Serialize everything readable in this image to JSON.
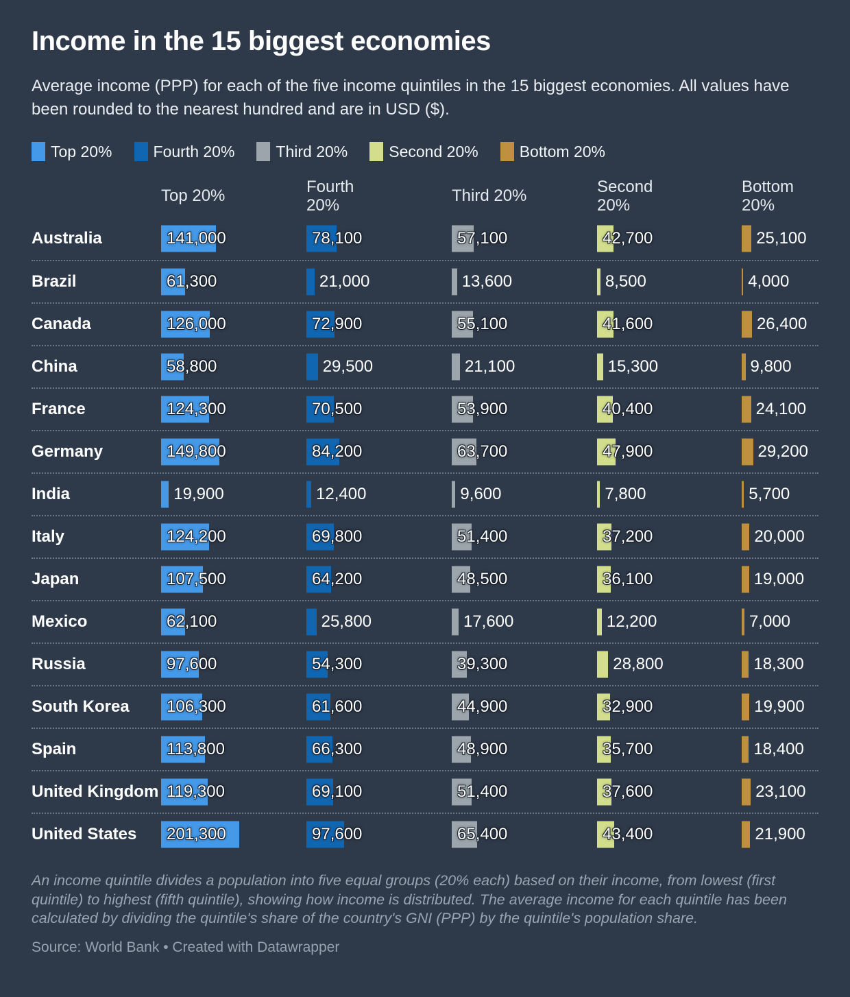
{
  "title": "Income in the 15 biggest economies",
  "subtitle": "Average income (PPP) for each of the five income quintiles in the 15 biggest economies. All values have been rounded to the nearest hundred and are in USD ($).",
  "notes": "An income quintile divides a population into five equal groups (20% each) based on their income, from lowest (first quintile) to highest (fifth quintile), showing how income is distributed. The average income for each quintile has been calculated by dividing the quintile's share of the country's GNI (PPP) by the quintile's population share.",
  "source": "Source: World Bank • Created with Datawrapper",
  "colors": {
    "background": "#2e3949",
    "text": "#ffffff",
    "muted_text": "#9aa5b1",
    "separator": "#9ea8b4"
  },
  "chart_data": {
    "type": "bar",
    "title": "Income in the 15 biggest economies",
    "unit": "USD ($), PPP",
    "value_format": "comma-thousands",
    "xlim": [
      0,
      201300
    ],
    "grid": false,
    "legend_position": "top",
    "categories": [
      "Australia",
      "Brazil",
      "Canada",
      "China",
      "France",
      "Germany",
      "India",
      "Italy",
      "Japan",
      "Mexico",
      "Russia",
      "South Korea",
      "Spain",
      "United Kingdom",
      "United States"
    ],
    "series": [
      {
        "name": "Top 20%",
        "header_lines": [
          "Top 20%"
        ],
        "color": "#4499e8",
        "values": [
          141000,
          61300,
          126000,
          58800,
          124300,
          149800,
          19900,
          124200,
          107500,
          62100,
          97600,
          106300,
          113800,
          119300,
          201300
        ]
      },
      {
        "name": "Fourth 20%",
        "header_lines": [
          "Fourth",
          "20%"
        ],
        "color": "#1166b2",
        "values": [
          78100,
          21000,
          72900,
          29500,
          70500,
          84200,
          12400,
          69800,
          64200,
          25800,
          54300,
          61600,
          66300,
          69100,
          97600
        ]
      },
      {
        "name": "Third 20%",
        "header_lines": [
          "Third 20%"
        ],
        "color": "#9ba5ab",
        "values": [
          57100,
          13600,
          55100,
          21100,
          53900,
          63700,
          9600,
          51400,
          48500,
          17600,
          39300,
          44900,
          48900,
          51400,
          65400
        ]
      },
      {
        "name": "Second 20%",
        "header_lines": [
          "Second",
          "20%"
        ],
        "color": "#d2de8b",
        "values": [
          42700,
          8500,
          41600,
          15300,
          40400,
          47900,
          7800,
          37200,
          36100,
          12200,
          28800,
          32900,
          35700,
          37600,
          43400
        ]
      },
      {
        "name": "Bottom 20%",
        "header_lines": [
          "Bottom",
          "20%"
        ],
        "color": "#bf9040",
        "values": [
          25100,
          4000,
          26400,
          9800,
          24100,
          29200,
          5700,
          20000,
          19000,
          7000,
          18300,
          19900,
          18400,
          23100,
          21900
        ]
      }
    ]
  }
}
